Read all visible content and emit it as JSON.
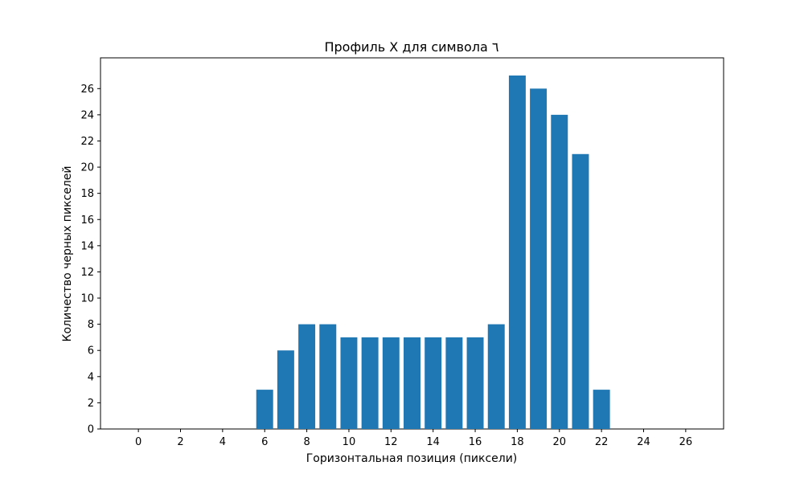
{
  "chart_data": {
    "type": "bar",
    "title": "Профиль X для символа ٦",
    "xlabel": "Горизонтальная позиция (пиксели)",
    "ylabel": "Количество черных пикселей",
    "x": [
      0,
      1,
      2,
      3,
      4,
      5,
      6,
      7,
      8,
      9,
      10,
      11,
      12,
      13,
      14,
      15,
      16,
      17,
      18,
      19,
      20,
      21,
      22,
      23,
      24,
      25,
      26
    ],
    "values": [
      0,
      0,
      0,
      0,
      0,
      0,
      3,
      6,
      8,
      8,
      7,
      7,
      7,
      7,
      7,
      7,
      7,
      8,
      27,
      26,
      24,
      21,
      3,
      0,
      0,
      0,
      0
    ],
    "xlim": [
      -1.8,
      27.8
    ],
    "ylim": [
      0,
      28.35
    ],
    "xticks": [
      0,
      2,
      4,
      6,
      8,
      10,
      12,
      14,
      16,
      18,
      20,
      22,
      24,
      26
    ],
    "yticks": [
      0,
      2,
      4,
      6,
      8,
      10,
      12,
      14,
      16,
      18,
      20,
      22,
      24,
      26
    ],
    "bar_color": "#1f77b4",
    "grid": false,
    "legend": "none"
  }
}
